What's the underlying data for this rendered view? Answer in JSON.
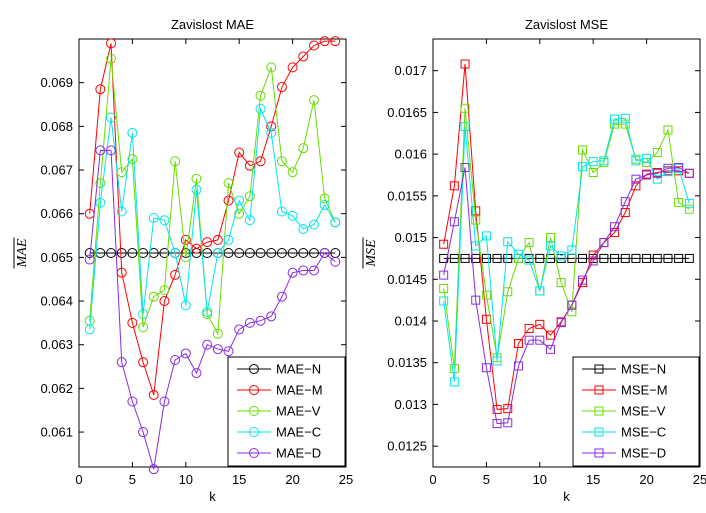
{
  "chart_data": [
    {
      "type": "line",
      "title": "Zavislost MAE",
      "xlabel": "k",
      "ylabel": "MAE",
      "xlim": [
        0,
        25
      ],
      "ylim": [
        0.0602,
        0.07
      ],
      "xticks": [
        0,
        5,
        10,
        15,
        20,
        25
      ],
      "yticks": [
        0.061,
        0.062,
        0.063,
        0.064,
        0.065,
        0.066,
        0.067,
        0.068,
        0.069
      ],
      "ytick_labels": [
        "0.061",
        "0.062",
        "0.063",
        "0.064",
        "0.065",
        "0.066",
        "0.067",
        "0.068",
        "0.069"
      ],
      "marker": "circle",
      "legend": "lower-right",
      "x": [
        1,
        2,
        3,
        4,
        5,
        6,
        7,
        8,
        9,
        10,
        11,
        12,
        13,
        14,
        15,
        16,
        17,
        18,
        19,
        20,
        21,
        22,
        23,
        24
      ],
      "series": [
        {
          "name": "MAE−N",
          "color": "#000000",
          "values": [
            0.0651,
            0.0651,
            0.0651,
            0.0651,
            0.0651,
            0.0651,
            0.0651,
            0.0651,
            0.0651,
            0.0651,
            0.0651,
            0.0651,
            0.0651,
            0.0651,
            0.0651,
            0.0651,
            0.0651,
            0.0651,
            0.0651,
            0.0651,
            0.0651,
            0.0651,
            0.0651,
            0.0651
          ]
        },
        {
          "name": "MAE−M",
          "color": "#ff0000",
          "values": [
            0.066,
            0.06885,
            0.0699,
            0.06465,
            0.0635,
            0.0626,
            0.06185,
            0.064,
            0.0646,
            0.0654,
            0.0652,
            0.06535,
            0.0654,
            0.0663,
            0.0674,
            0.0671,
            0.0672,
            0.068,
            0.0689,
            0.06935,
            0.0696,
            0.06985,
            0.06995,
            0.06995
          ]
        },
        {
          "name": "MAE−V",
          "color": "#66dd00",
          "values": [
            0.06355,
            0.0667,
            0.06955,
            0.06695,
            0.06725,
            0.0634,
            0.0641,
            0.06425,
            0.0672,
            0.065,
            0.0668,
            0.0637,
            0.06325,
            0.0667,
            0.066,
            0.0664,
            0.0687,
            0.06935,
            0.0672,
            0.06695,
            0.0675,
            0.0686,
            0.06635,
            0.0658
          ]
        },
        {
          "name": "MAE−C",
          "color": "#00e5ee",
          "values": [
            0.06335,
            0.06625,
            0.0682,
            0.06605,
            0.06785,
            0.0637,
            0.0659,
            0.06585,
            0.0651,
            0.0639,
            0.06655,
            0.06375,
            0.0651,
            0.0654,
            0.0663,
            0.06585,
            0.0684,
            0.06785,
            0.06605,
            0.06595,
            0.06565,
            0.06575,
            0.0662,
            0.0658
          ]
        },
        {
          "name": "MAE−D",
          "color": "#8a2be2",
          "values": [
            0.06495,
            0.06745,
            0.06745,
            0.0626,
            0.0617,
            0.061,
            0.06015,
            0.0617,
            0.06265,
            0.0628,
            0.06235,
            0.063,
            0.0629,
            0.06285,
            0.06335,
            0.0635,
            0.06355,
            0.06365,
            0.0641,
            0.06465,
            0.0647,
            0.0647,
            0.0651,
            0.0649
          ]
        }
      ]
    },
    {
      "type": "line",
      "title": "Zavislost MSE",
      "xlabel": "k",
      "ylabel": "MSE",
      "xlim": [
        0,
        25
      ],
      "ylim": [
        0.01225,
        0.01738
      ],
      "xticks": [
        0,
        5,
        10,
        15,
        20,
        25
      ],
      "yticks": [
        0.0125,
        0.013,
        0.0135,
        0.014,
        0.0145,
        0.015,
        0.0155,
        0.016,
        0.0165,
        0.017
      ],
      "ytick_labels": [
        "0.0125",
        "0.013",
        "0.0135",
        "0.014",
        "0.0145",
        "0.015",
        "0.0155",
        "0.016",
        "0.0165",
        "0.017"
      ],
      "marker": "square",
      "legend": "lower-right",
      "x": [
        1,
        2,
        3,
        4,
        5,
        6,
        7,
        8,
        9,
        10,
        11,
        12,
        13,
        14,
        15,
        16,
        17,
        18,
        19,
        20,
        21,
        22,
        23,
        24
      ],
      "series": [
        {
          "name": "MSE−N",
          "color": "#000000",
          "values": [
            0.01475,
            0.01475,
            0.01475,
            0.01475,
            0.01475,
            0.01475,
            0.01475,
            0.01475,
            0.01475,
            0.01475,
            0.01475,
            0.01475,
            0.01475,
            0.01475,
            0.01475,
            0.01475,
            0.01475,
            0.01475,
            0.01475,
            0.01475,
            0.01475,
            0.01475,
            0.01475,
            0.01475
          ]
        },
        {
          "name": "MSE−M",
          "color": "#ff0000",
          "values": [
            0.01492,
            0.01562,
            0.01708,
            0.01532,
            0.01402,
            0.01294,
            0.01295,
            0.01373,
            0.01391,
            0.01396,
            0.01383,
            0.01399,
            0.01419,
            0.01446,
            0.01479,
            0.01494,
            0.01506,
            0.0153,
            0.01562,
            0.01576,
            0.01578,
            0.0158,
            0.0158,
            0.01577
          ]
        },
        {
          "name": "MSE−V",
          "color": "#66dd00",
          "values": [
            0.01439,
            0.01343,
            0.01655,
            0.01521,
            0.01431,
            0.01356,
            0.01435,
            0.01475,
            0.01494,
            0.01436,
            0.015,
            0.01446,
            0.01411,
            0.01605,
            0.01578,
            0.0159,
            0.01636,
            0.01636,
            0.01594,
            0.0159,
            0.01602,
            0.01629,
            0.01542,
            0.01534
          ]
        },
        {
          "name": "MSE−C",
          "color": "#00e5ee",
          "values": [
            0.01424,
            0.01327,
            0.01633,
            0.0149,
            0.01502,
            0.01352,
            0.01495,
            0.0148,
            0.01473,
            0.01436,
            0.0149,
            0.01478,
            0.01485,
            0.01585,
            0.01591,
            0.01592,
            0.01642,
            0.01643,
            0.01592,
            0.01595,
            0.0157,
            0.01579,
            0.01583,
            0.01541
          ]
        },
        {
          "name": "MSE−D",
          "color": "#8a2be2",
          "values": [
            0.01455,
            0.01519,
            0.01584,
            0.01425,
            0.01344,
            0.01277,
            0.01278,
            0.01346,
            0.01377,
            0.01377,
            0.01366,
            0.01398,
            0.01419,
            0.01449,
            0.01472,
            0.01494,
            0.01513,
            0.01543,
            0.0157,
            0.01575,
            0.01577,
            0.01583,
            0.01584,
            0.01577
          ]
        }
      ]
    }
  ]
}
